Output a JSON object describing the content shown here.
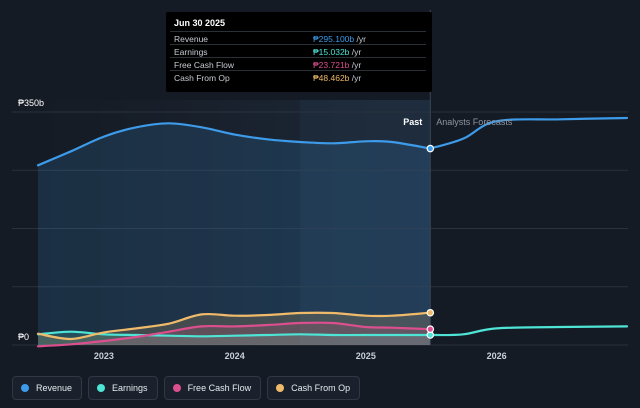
{
  "chart_data": {
    "type": "area",
    "y_axis": {
      "ticks": [
        "₱350b",
        "₱0"
      ],
      "ylim": [
        0,
        350
      ]
    },
    "x_axis": {
      "ticks": [
        "2023",
        "2024",
        "2025",
        "2026"
      ],
      "range": [
        "2022-07-01",
        "2026-12-31"
      ]
    },
    "divider": {
      "date": "2025-06-30",
      "past_label": "Past",
      "forecast_label": "Analysts Forecasts"
    },
    "series": [
      {
        "name": "Revenue",
        "color": "#3d9be9",
        "x": [
          "2022-07-01",
          "2022-10-01",
          "2023-01-01",
          "2023-04-01",
          "2023-07-01",
          "2023-10-01",
          "2024-01-01",
          "2024-04-01",
          "2024-07-01",
          "2024-10-01",
          "2025-01-01",
          "2025-03-15",
          "2025-06-30",
          "2025-09-30",
          "2025-12-31",
          "2026-06-30",
          "2026-12-31"
        ],
        "values": [
          270,
          291,
          313,
          327,
          333,
          327,
          316,
          309,
          305,
          303,
          306,
          305,
          295.1,
          310,
          336,
          339,
          341
        ]
      },
      {
        "name": "Earnings",
        "color": "#4ee4d6",
        "x": [
          "2022-07-01",
          "2022-10-01",
          "2023-01-01",
          "2023-04-01",
          "2023-07-01",
          "2023-10-01",
          "2024-01-01",
          "2024-04-01",
          "2024-07-01",
          "2024-10-01",
          "2025-01-01",
          "2025-03-15",
          "2025-06-30",
          "2025-09-30",
          "2025-12-31",
          "2026-06-30",
          "2026-12-31"
        ],
        "values": [
          16,
          20,
          16,
          15,
          14,
          13,
          14,
          15,
          16,
          15,
          15,
          15,
          15.032,
          16,
          25,
          27,
          28
        ]
      },
      {
        "name": "Free Cash Flow",
        "color": "#dc4f8e",
        "x": [
          "2022-07-01",
          "2022-10-01",
          "2023-01-01",
          "2023-04-01",
          "2023-07-01",
          "2023-10-01",
          "2024-01-01",
          "2024-04-01",
          "2024-07-01",
          "2024-10-01",
          "2025-01-01",
          "2025-03-15",
          "2025-06-30"
        ],
        "values": [
          -2,
          1,
          6,
          12,
          20,
          28,
          28,
          30,
          33,
          33,
          27,
          26,
          23.721
        ]
      },
      {
        "name": "Cash From Op",
        "color": "#f0ba6b",
        "x": [
          "2022-07-01",
          "2022-10-01",
          "2023-01-01",
          "2023-04-01",
          "2023-07-01",
          "2023-10-01",
          "2024-01-01",
          "2024-04-01",
          "2024-07-01",
          "2024-10-01",
          "2025-01-01",
          "2025-03-15",
          "2025-06-30"
        ],
        "values": [
          17,
          9,
          19,
          25,
          32,
          46,
          44,
          45,
          48,
          48,
          44,
          44,
          48.462
        ]
      }
    ],
    "grid": true
  },
  "tooltip": {
    "date": "Jun 30 2025",
    "rows": [
      {
        "label": "Revenue",
        "value": "₱295.100b",
        "unit": " /yr",
        "color": "#3d9be9"
      },
      {
        "label": "Earnings",
        "value": "₱15.032b",
        "unit": " /yr",
        "color": "#4ee4d6"
      },
      {
        "label": "Free Cash Flow",
        "value": "₱23.721b",
        "unit": " /yr",
        "color": "#dc4f8e"
      },
      {
        "label": "Cash From Op",
        "value": "₱48.462b",
        "unit": " /yr",
        "color": "#f0ba6b"
      }
    ]
  },
  "legend": [
    {
      "label": "Revenue",
      "color": "#3d9be9"
    },
    {
      "label": "Earnings",
      "color": "#4ee4d6"
    },
    {
      "label": "Free Cash Flow",
      "color": "#dc4f8e"
    },
    {
      "label": "Cash From Op",
      "color": "#f0ba6b"
    }
  ]
}
